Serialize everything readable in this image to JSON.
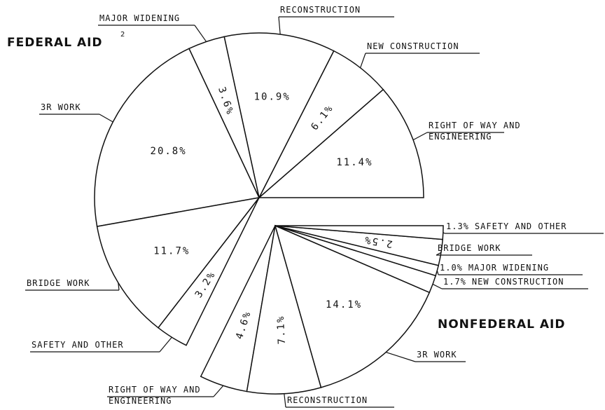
{
  "chart_data": {
    "type": "pie",
    "series": [
      {
        "name": "FEDERAL AID",
        "superscript": "2",
        "categories": [
          [
            "RIGHT OF WAY AND",
            "ENGINEERING"
          ],
          [
            "NEW CONSTRUCTION"
          ],
          [
            "RECONSTRUCTION"
          ],
          [
            "MAJOR WIDENING"
          ],
          [
            "3R WORK"
          ],
          [
            "BRIDGE WORK"
          ],
          [
            "SAFETY AND OTHER"
          ]
        ],
        "values": [
          11.4,
          6.1,
          10.9,
          3.6,
          20.8,
          11.7,
          3.2
        ],
        "value_labels": [
          "11.4%",
          "6.1%",
          "10.9%",
          "3.6%",
          "20.8%",
          "11.7%",
          "3.2%"
        ]
      },
      {
        "name": "NONFEDERAL AID",
        "categories": [
          [
            "RIGHT OF WAY AND",
            "ENGINEERING"
          ],
          [
            "RECONSTRUCTION"
          ],
          [
            "3R WORK"
          ],
          [
            "NEW CONSTRUCTION"
          ],
          [
            "MAJOR WIDENING"
          ],
          [
            "BRIDGE WORK"
          ],
          [
            "SAFETY AND OTHER"
          ]
        ],
        "values": [
          4.6,
          7.1,
          14.1,
          1.7,
          1.0,
          2.5,
          1.3
        ],
        "value_labels": [
          "4.6%",
          "7.1%",
          "14.1%",
          "1.7%",
          "1.0%",
          "2.5%",
          "1.3%"
        ]
      }
    ]
  }
}
